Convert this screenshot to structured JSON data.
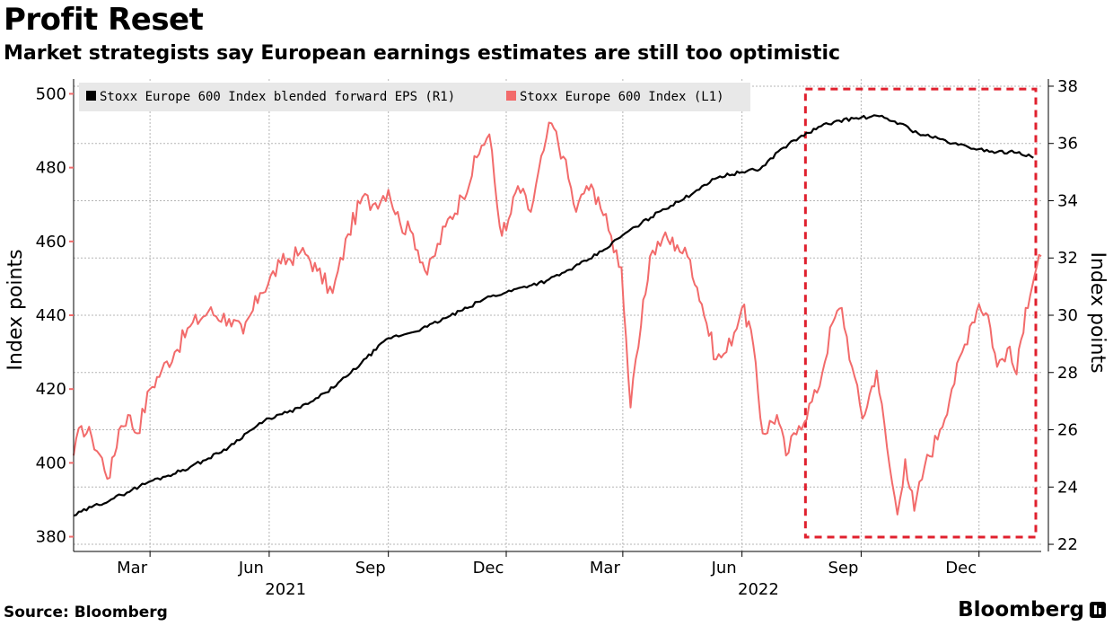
{
  "title": "Profit Reset",
  "subtitle": "Market strategists say European earnings estimates are still too optimistic",
  "source": "Source: Bloomberg",
  "brand": "Bloomberg",
  "colors": {
    "eps": "#000000",
    "index": "#f26b6b",
    "highlight": "#e0202e",
    "grid": "#b5b5b5",
    "legend_bg": "#e8e8e8"
  },
  "chart_data": {
    "type": "line",
    "title": "Profit Reset",
    "subtitle": "Market strategists say European earnings estimates are still too optimistic",
    "x_start": "2021-01-01",
    "x_end": "2023-01-18",
    "x_tick_labels": [
      {
        "label": "Mar",
        "date": "2021-03-01"
      },
      {
        "label": "Jun",
        "date": "2021-06-01"
      },
      {
        "label": "Sep",
        "date": "2021-09-01"
      },
      {
        "label": "Dec",
        "date": "2021-12-01"
      },
      {
        "label": "Mar",
        "date": "2022-03-01"
      },
      {
        "label": "Jun",
        "date": "2022-06-01"
      },
      {
        "label": "Sep",
        "date": "2022-09-01"
      },
      {
        "label": "Dec",
        "date": "2022-12-01"
      }
    ],
    "year_labels": [
      {
        "label": "2021",
        "date": "2021-07-01"
      },
      {
        "label": "2022",
        "date": "2022-07-01"
      }
    ],
    "left_axis": {
      "label": "Index points",
      "range": [
        376,
        504
      ],
      "ticks": [
        380,
        400,
        420,
        440,
        460,
        480,
        500
      ]
    },
    "right_axis": {
      "label": "Index points",
      "range": [
        21.75,
        38.25
      ],
      "ticks": [
        22,
        24,
        26,
        28,
        30,
        32,
        34,
        36,
        38
      ]
    },
    "legend": [
      {
        "name": "Stoxx Europe 600 Index blended forward EPS (R1)",
        "series": "eps"
      },
      {
        "name": "Stoxx Europe 600 Index (L1)",
        "series": "index"
      }
    ],
    "series": [
      {
        "id": "eps",
        "name": "Stoxx Europe 600 Index blended forward EPS (R1)",
        "axis": "right",
        "points": [
          [
            "2021-01-01",
            23.0
          ],
          [
            "2021-01-15",
            23.3
          ],
          [
            "2021-02-01",
            23.6
          ],
          [
            "2021-02-15",
            23.9
          ],
          [
            "2021-03-01",
            24.2
          ],
          [
            "2021-03-15",
            24.4
          ],
          [
            "2021-04-01",
            24.7
          ],
          [
            "2021-04-15",
            25.0
          ],
          [
            "2021-05-01",
            25.4
          ],
          [
            "2021-05-15",
            25.9
          ],
          [
            "2021-06-01",
            26.4
          ],
          [
            "2021-06-15",
            26.6
          ],
          [
            "2021-07-01",
            26.9
          ],
          [
            "2021-07-15",
            27.3
          ],
          [
            "2021-08-01",
            27.9
          ],
          [
            "2021-08-15",
            28.5
          ],
          [
            "2021-09-01",
            29.2
          ],
          [
            "2021-09-15",
            29.35
          ],
          [
            "2021-10-01",
            29.6
          ],
          [
            "2021-10-15",
            29.9
          ],
          [
            "2021-11-01",
            30.25
          ],
          [
            "2021-11-15",
            30.6
          ],
          [
            "2021-12-01",
            30.8
          ],
          [
            "2021-12-15",
            31.0
          ],
          [
            "2022-01-01",
            31.2
          ],
          [
            "2022-01-15",
            31.5
          ],
          [
            "2022-02-01",
            31.9
          ],
          [
            "2022-02-15",
            32.3
          ],
          [
            "2022-03-01",
            32.8
          ],
          [
            "2022-03-15",
            33.2
          ],
          [
            "2022-04-01",
            33.7
          ],
          [
            "2022-04-15",
            34.0
          ],
          [
            "2022-05-01",
            34.5
          ],
          [
            "2022-05-15",
            34.85
          ],
          [
            "2022-06-01",
            35.0
          ],
          [
            "2022-06-15",
            35.1
          ],
          [
            "2022-07-01",
            35.8
          ],
          [
            "2022-07-15",
            36.2
          ],
          [
            "2022-08-01",
            36.6
          ],
          [
            "2022-08-15",
            36.8
          ],
          [
            "2022-09-01",
            36.9
          ],
          [
            "2022-09-15",
            36.95
          ],
          [
            "2022-10-01",
            36.7
          ],
          [
            "2022-10-15",
            36.35
          ],
          [
            "2022-11-01",
            36.15
          ],
          [
            "2022-11-15",
            35.95
          ],
          [
            "2022-12-01",
            35.8
          ],
          [
            "2022-12-15",
            35.7
          ],
          [
            "2023-01-01",
            35.7
          ],
          [
            "2023-01-12",
            35.5
          ]
        ]
      },
      {
        "id": "index",
        "name": "Stoxx Europe 600 Index (L1)",
        "axis": "left",
        "points": [
          [
            "2021-01-01",
            402
          ],
          [
            "2021-01-07",
            410
          ],
          [
            "2021-01-15",
            407
          ],
          [
            "2021-01-29",
            396
          ],
          [
            "2021-02-05",
            409
          ],
          [
            "2021-02-12",
            413
          ],
          [
            "2021-02-19",
            408
          ],
          [
            "2021-03-01",
            420
          ],
          [
            "2021-03-10",
            425
          ],
          [
            "2021-03-20",
            430
          ],
          [
            "2021-04-01",
            437
          ],
          [
            "2021-04-15",
            441
          ],
          [
            "2021-05-01",
            439
          ],
          [
            "2021-05-12",
            435
          ],
          [
            "2021-05-25",
            446
          ],
          [
            "2021-06-10",
            454
          ],
          [
            "2021-06-25",
            457
          ],
          [
            "2021-07-01",
            456
          ],
          [
            "2021-07-08",
            452
          ],
          [
            "2021-07-20",
            446
          ],
          [
            "2021-08-01",
            462
          ],
          [
            "2021-08-12",
            472
          ],
          [
            "2021-08-20",
            470
          ],
          [
            "2021-09-01",
            474
          ],
          [
            "2021-09-10",
            465
          ],
          [
            "2021-09-20",
            462
          ],
          [
            "2021-10-01",
            451
          ],
          [
            "2021-10-15",
            464
          ],
          [
            "2021-10-28",
            472
          ],
          [
            "2021-11-12",
            486
          ],
          [
            "2021-11-18",
            489
          ],
          [
            "2021-11-26",
            464
          ],
          [
            "2021-12-01",
            463
          ],
          [
            "2021-12-10",
            475
          ],
          [
            "2021-12-20",
            468
          ],
          [
            "2022-01-01",
            488
          ],
          [
            "2022-01-05",
            492
          ],
          [
            "2022-01-14",
            483
          ],
          [
            "2022-01-24",
            468
          ],
          [
            "2022-02-01",
            475
          ],
          [
            "2022-02-10",
            472
          ],
          [
            "2022-02-18",
            463
          ],
          [
            "2022-02-28",
            453
          ],
          [
            "2022-03-07",
            415
          ],
          [
            "2022-03-15",
            437
          ],
          [
            "2022-03-22",
            456
          ],
          [
            "2022-04-01",
            461
          ],
          [
            "2022-04-12",
            459
          ],
          [
            "2022-04-22",
            455
          ],
          [
            "2022-05-01",
            443
          ],
          [
            "2022-05-12",
            428
          ],
          [
            "2022-05-20",
            430
          ],
          [
            "2022-06-01",
            442
          ],
          [
            "2022-06-08",
            436
          ],
          [
            "2022-06-17",
            408
          ],
          [
            "2022-06-28",
            413
          ],
          [
            "2022-07-05",
            402
          ],
          [
            "2022-07-15",
            410
          ],
          [
            "2022-07-29",
            419
          ],
          [
            "2022-08-10",
            438
          ],
          [
            "2022-08-17",
            442
          ],
          [
            "2022-08-25",
            426
          ],
          [
            "2022-09-02",
            412
          ],
          [
            "2022-09-13",
            425
          ],
          [
            "2022-09-23",
            399
          ],
          [
            "2022-09-29",
            386
          ],
          [
            "2022-10-05",
            401
          ],
          [
            "2022-10-12",
            387
          ],
          [
            "2022-10-20",
            399
          ],
          [
            "2022-11-01",
            409
          ],
          [
            "2022-11-10",
            420
          ],
          [
            "2022-11-24",
            437
          ],
          [
            "2022-12-01",
            443
          ],
          [
            "2022-12-08",
            440
          ],
          [
            "2022-12-15",
            426
          ],
          [
            "2022-12-23",
            431
          ],
          [
            "2022-12-30",
            424
          ],
          [
            "2023-01-06",
            442
          ],
          [
            "2023-01-13",
            451
          ],
          [
            "2023-01-18",
            456
          ]
        ]
      }
    ],
    "annotations": [
      {
        "type": "dashed-box",
        "x_start": "2022-07-20",
        "x_end": "2023-01-20",
        "y_right_start": 22.25,
        "y_right_end": 37.9
      }
    ]
  }
}
